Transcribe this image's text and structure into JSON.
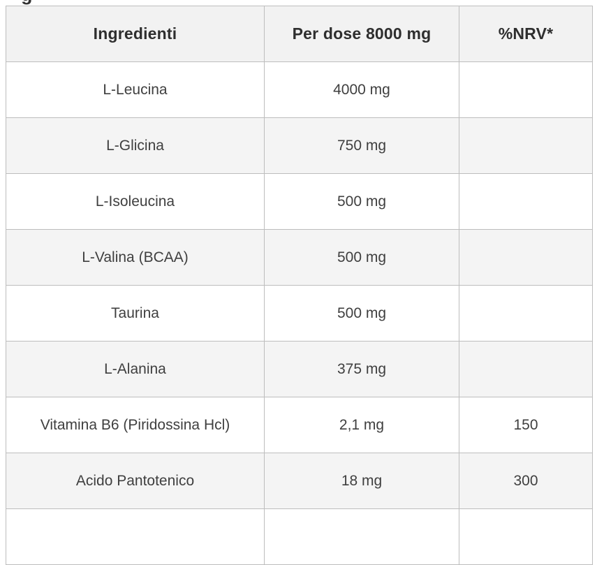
{
  "page": {
    "cropped_heading_fragment": "g"
  },
  "table": {
    "columns": [
      {
        "label": "Ingredienti"
      },
      {
        "label": "Per dose 8000 mg"
      },
      {
        "label": "%NRV*"
      }
    ],
    "rows": [
      {
        "ingredient": "L-Leucina",
        "per_dose": "4000 mg",
        "nrv": ""
      },
      {
        "ingredient": "L-Glicina",
        "per_dose": "750 mg",
        "nrv": ""
      },
      {
        "ingredient": "L-Isoleucina",
        "per_dose": "500 mg",
        "nrv": ""
      },
      {
        "ingredient": "L-Valina (BCAA)",
        "per_dose": "500 mg",
        "nrv": ""
      },
      {
        "ingredient": "Taurina",
        "per_dose": "500 mg",
        "nrv": ""
      },
      {
        "ingredient": "L-Alanina",
        "per_dose": "375 mg",
        "nrv": ""
      },
      {
        "ingredient": "Vitamina B6 (Piridossina Hcl)",
        "per_dose": "2,1 mg",
        "nrv": "150"
      },
      {
        "ingredient": "Acido Pantotenico",
        "per_dose": "18 mg",
        "nrv": "300"
      }
    ]
  },
  "colors": {
    "header_bg": "#f2f2f2",
    "alt_row_bg": "#f4f4f4",
    "row_bg": "#ffffff",
    "border": "#bdbdbd",
    "header_text": "#2e2e2e",
    "body_text": "#3f3f3f"
  }
}
